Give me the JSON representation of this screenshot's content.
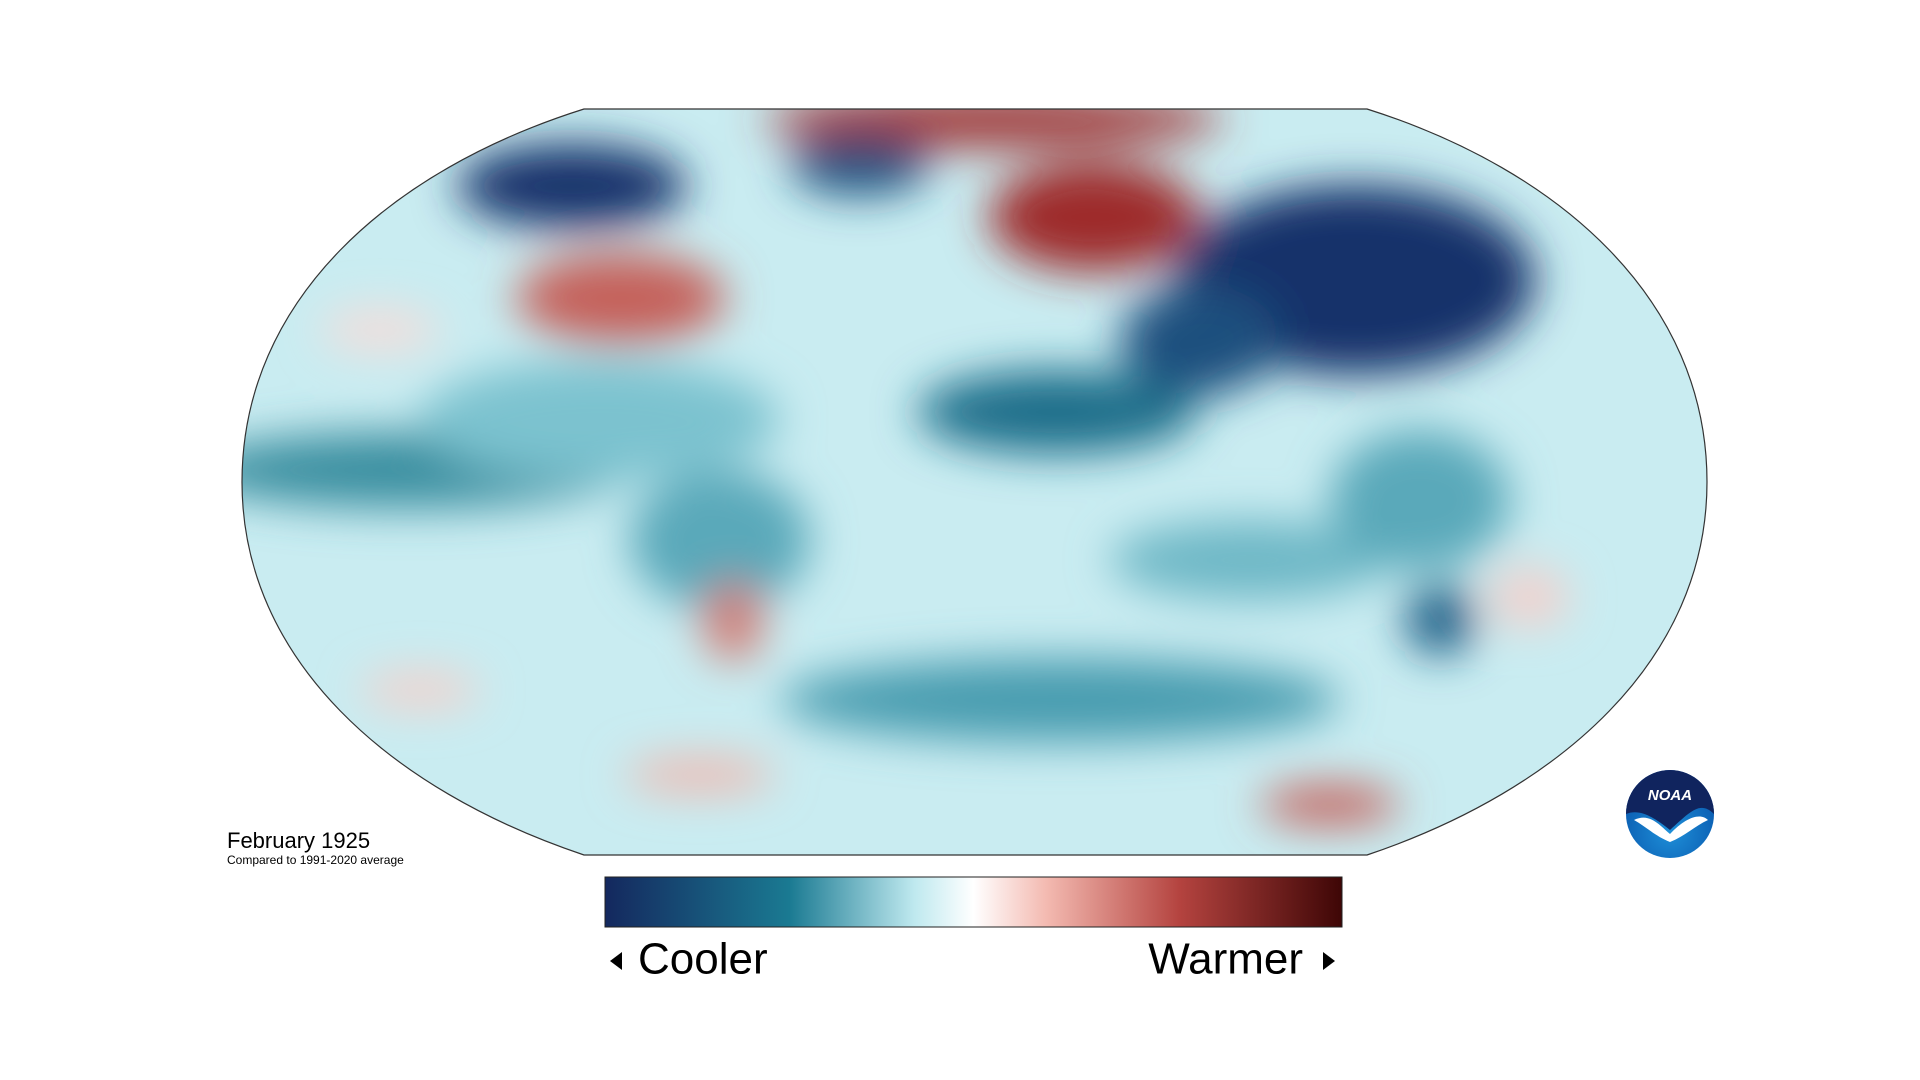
{
  "map": {
    "title": "February 1925",
    "subtitle": "Compared to 1991-2020 average"
  },
  "legend": {
    "low_label": "Cooler",
    "high_label": "Warmer"
  },
  "logo": {
    "text": "NOAA"
  }
}
